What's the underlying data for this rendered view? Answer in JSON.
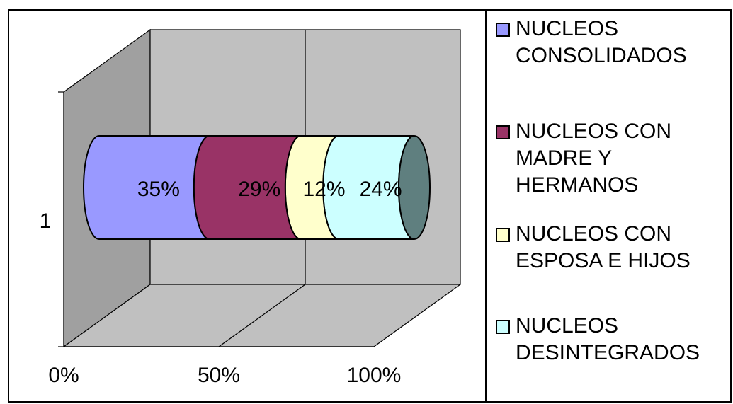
{
  "chart_data": {
    "type": "bar",
    "orientation": "horizontal",
    "stacked": "100%",
    "style": "3d-cylinder",
    "categories": [
      "1"
    ],
    "series": [
      {
        "name": "NUCLEOS\nCONSOLIDADOS",
        "values": [
          35
        ],
        "label": "35%",
        "color": "#9999FF"
      },
      {
        "name": "NUCLEOS CON\nMADRE Y\nHERMANOS",
        "values": [
          29
        ],
        "label": "29%",
        "color": "#993366"
      },
      {
        "name": "NUCLEOS CON\nESPOSA E HIJOS",
        "values": [
          12
        ],
        "label": "12%",
        "color": "#FFFFCC"
      },
      {
        "name": "NUCLEOS\nDESINTEGRADOS",
        "values": [
          24
        ],
        "label": "24%",
        "color": "#CCFFFF"
      }
    ],
    "x_ticks": [
      "0%",
      "50%",
      "100%"
    ],
    "xlim": [
      0,
      100
    ],
    "legend_position": "right",
    "grid": true,
    "colors": {
      "back_wall": "#C0C0C0",
      "side_wall": "#A0A0A0",
      "floor": "#C0C0C0",
      "cap": "#5F7F7F"
    }
  }
}
